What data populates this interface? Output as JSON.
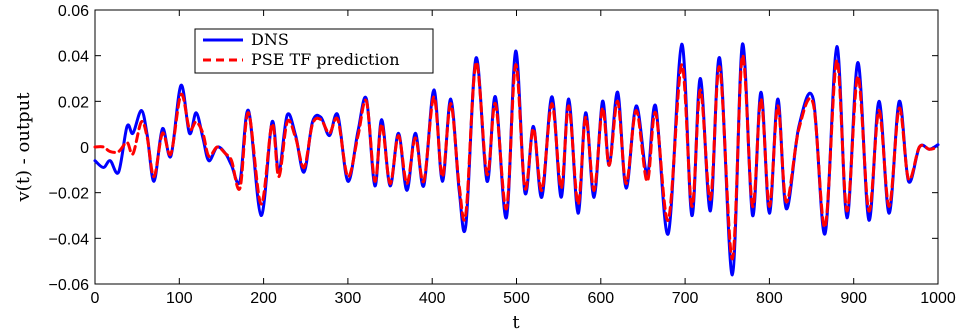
{
  "chart_data": {
    "type": "line",
    "xlabel": "t",
    "ylabel": "v(t) - output",
    "xlim": [
      0,
      1000
    ],
    "ylim": [
      -0.06,
      0.06
    ],
    "xticks": [
      0,
      100,
      200,
      300,
      400,
      500,
      600,
      700,
      800,
      900,
      1000
    ],
    "yticks": [
      -0.06,
      -0.04,
      -0.02,
      0,
      0.02,
      0.04,
      0.06
    ],
    "xtick_labels": [
      "0",
      "100",
      "200",
      "300",
      "400",
      "500",
      "600",
      "700",
      "800",
      "900",
      "1000"
    ],
    "ytick_labels": [
      "−0.06",
      "−0.04",
      "−0.02",
      "0",
      "0.02",
      "0.04",
      "0.06"
    ],
    "grid": false,
    "legend_position": "top-left",
    "series": [
      {
        "name": "DNS",
        "color": "#0000ff",
        "style": "solid",
        "points": [
          [
            0,
            -0.006
          ],
          [
            10,
            -0.009
          ],
          [
            18,
            -0.006
          ],
          [
            28,
            -0.011
          ],
          [
            38,
            0.009
          ],
          [
            45,
            0.006
          ],
          [
            55,
            0.016
          ],
          [
            62,
            0.005
          ],
          [
            70,
            -0.015
          ],
          [
            80,
            0.008
          ],
          [
            90,
            -0.004
          ],
          [
            102,
            0.027
          ],
          [
            112,
            0.006
          ],
          [
            120,
            0.015
          ],
          [
            128,
            0.004
          ],
          [
            135,
            -0.006
          ],
          [
            145,
            0.0
          ],
          [
            155,
            -0.003
          ],
          [
            162,
            -0.008
          ],
          [
            172,
            -0.015
          ],
          [
            182,
            0.016
          ],
          [
            197,
            -0.03
          ],
          [
            210,
            0.011
          ],
          [
            218,
            -0.011
          ],
          [
            228,
            0.014
          ],
          [
            238,
            0.005
          ],
          [
            248,
            -0.011
          ],
          [
            258,
            0.011
          ],
          [
            268,
            0.013
          ],
          [
            278,
            0.005
          ],
          [
            288,
            0.014
          ],
          [
            300,
            -0.015
          ],
          [
            312,
            0.007
          ],
          [
            322,
            0.021
          ],
          [
            332,
            -0.017
          ],
          [
            340,
            0.012
          ],
          [
            350,
            -0.017
          ],
          [
            360,
            0.006
          ],
          [
            370,
            -0.019
          ],
          [
            380,
            0.006
          ],
          [
            390,
            -0.017
          ],
          [
            402,
            0.025
          ],
          [
            412,
            -0.015
          ],
          [
            422,
            0.021
          ],
          [
            432,
            -0.019
          ],
          [
            440,
            -0.034
          ],
          [
            452,
            0.039
          ],
          [
            465,
            -0.015
          ],
          [
            475,
            0.022
          ],
          [
            488,
            -0.031
          ],
          [
            499,
            0.042
          ],
          [
            510,
            -0.02
          ],
          [
            520,
            0.009
          ],
          [
            530,
            -0.022
          ],
          [
            542,
            0.022
          ],
          [
            553,
            -0.022
          ],
          [
            562,
            0.021
          ],
          [
            573,
            -0.029
          ],
          [
            582,
            0.015
          ],
          [
            592,
            -0.022
          ],
          [
            602,
            0.02
          ],
          [
            610,
            -0.008
          ],
          [
            620,
            0.024
          ],
          [
            630,
            -0.018
          ],
          [
            642,
            0.018
          ],
          [
            655,
            -0.012
          ],
          [
            665,
            0.018
          ],
          [
            680,
            -0.038
          ],
          [
            696,
            0.045
          ],
          [
            708,
            -0.03
          ],
          [
            718,
            0.03
          ],
          [
            730,
            -0.028
          ],
          [
            741,
            0.039
          ],
          [
            756,
            -0.056
          ],
          [
            768,
            0.045
          ],
          [
            780,
            -0.03
          ],
          [
            790,
            0.024
          ],
          [
            800,
            -0.029
          ],
          [
            810,
            0.021
          ],
          [
            820,
            -0.027
          ],
          [
            835,
            0.009
          ],
          [
            852,
            0.021
          ],
          [
            866,
            -0.038
          ],
          [
            880,
            0.044
          ],
          [
            892,
            -0.031
          ],
          [
            905,
            0.037
          ],
          [
            918,
            -0.032
          ],
          [
            930,
            0.02
          ],
          [
            942,
            -0.029
          ],
          [
            954,
            0.02
          ],
          [
            965,
            -0.015
          ],
          [
            978,
            0.0
          ],
          [
            990,
            -0.001
          ],
          [
            1000,
            0.001
          ]
        ]
      },
      {
        "name": "PSE TF prediction",
        "color": "#ff0000",
        "style": "dashed",
        "points": [
          [
            0,
            0.0
          ],
          [
            10,
            0.0
          ],
          [
            18,
            -0.002
          ],
          [
            28,
            -0.002
          ],
          [
            38,
            0.002
          ],
          [
            45,
            -0.003
          ],
          [
            55,
            0.011
          ],
          [
            62,
            0.004
          ],
          [
            70,
            -0.013
          ],
          [
            80,
            0.006
          ],
          [
            90,
            -0.003
          ],
          [
            102,
            0.023
          ],
          [
            112,
            0.008
          ],
          [
            120,
            0.011
          ],
          [
            128,
            0.006
          ],
          [
            135,
            -0.004
          ],
          [
            145,
            0.0
          ],
          [
            155,
            -0.003
          ],
          [
            162,
            -0.006
          ],
          [
            172,
            -0.018
          ],
          [
            182,
            0.015
          ],
          [
            197,
            -0.025
          ],
          [
            210,
            0.01
          ],
          [
            218,
            -0.013
          ],
          [
            228,
            0.011
          ],
          [
            238,
            0.004
          ],
          [
            248,
            -0.009
          ],
          [
            258,
            0.01
          ],
          [
            268,
            0.012
          ],
          [
            278,
            0.006
          ],
          [
            288,
            0.012
          ],
          [
            300,
            -0.013
          ],
          [
            312,
            0.005
          ],
          [
            322,
            0.02
          ],
          [
            332,
            -0.015
          ],
          [
            340,
            0.01
          ],
          [
            350,
            -0.016
          ],
          [
            360,
            0.005
          ],
          [
            370,
            -0.016
          ],
          [
            380,
            0.004
          ],
          [
            390,
            -0.015
          ],
          [
            402,
            0.022
          ],
          [
            412,
            -0.013
          ],
          [
            422,
            0.019
          ],
          [
            432,
            -0.017
          ],
          [
            440,
            -0.029
          ],
          [
            452,
            0.037
          ],
          [
            465,
            -0.012
          ],
          [
            475,
            0.019
          ],
          [
            488,
            -0.027
          ],
          [
            499,
            0.036
          ],
          [
            510,
            -0.018
          ],
          [
            520,
            0.008
          ],
          [
            530,
            -0.019
          ],
          [
            542,
            0.019
          ],
          [
            553,
            -0.018
          ],
          [
            562,
            0.018
          ],
          [
            573,
            -0.025
          ],
          [
            582,
            0.013
          ],
          [
            592,
            -0.019
          ],
          [
            602,
            0.017
          ],
          [
            610,
            -0.008
          ],
          [
            620,
            0.02
          ],
          [
            630,
            -0.016
          ],
          [
            642,
            0.016
          ],
          [
            655,
            -0.015
          ],
          [
            665,
            0.015
          ],
          [
            680,
            -0.032
          ],
          [
            696,
            0.036
          ],
          [
            708,
            -0.026
          ],
          [
            718,
            0.025
          ],
          [
            730,
            -0.023
          ],
          [
            741,
            0.035
          ],
          [
            756,
            -0.049
          ],
          [
            768,
            0.04
          ],
          [
            780,
            -0.026
          ],
          [
            790,
            0.021
          ],
          [
            800,
            -0.026
          ],
          [
            810,
            0.018
          ],
          [
            820,
            -0.024
          ],
          [
            835,
            0.008
          ],
          [
            852,
            0.019
          ],
          [
            866,
            -0.035
          ],
          [
            880,
            0.038
          ],
          [
            892,
            -0.028
          ],
          [
            905,
            0.031
          ],
          [
            918,
            -0.028
          ],
          [
            930,
            0.016
          ],
          [
            942,
            -0.026
          ],
          [
            954,
            0.017
          ],
          [
            965,
            -0.014
          ],
          [
            978,
            0.0
          ],
          [
            990,
            -0.001
          ],
          [
            1000,
            0.0
          ]
        ]
      }
    ]
  }
}
